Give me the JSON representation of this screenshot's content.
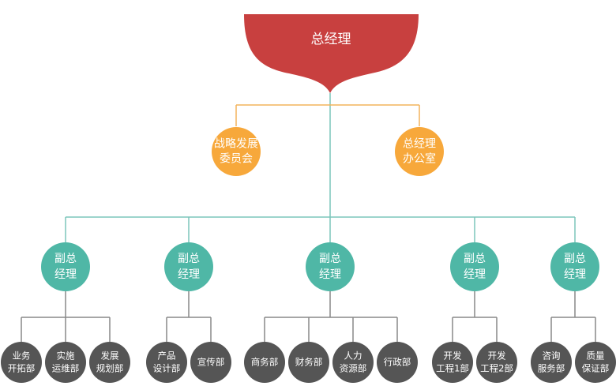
{
  "colors": {
    "top": "#c8403f",
    "staff": "#f7a83b",
    "vp": "#4fb7a6",
    "dept": "#555555",
    "line_orange": "#f2b35c",
    "line_teal": "#7cc5bb",
    "line_gray": "#888888"
  },
  "ceo": {
    "label": "总经理"
  },
  "staff_units": [
    {
      "lines": [
        "战略发展",
        "委员会"
      ]
    },
    {
      "lines": [
        "总经理",
        "办公室"
      ]
    }
  ],
  "vp_groups": [
    {
      "label_lines": [
        "副总",
        "经理"
      ],
      "departments": [
        {
          "lines": [
            "业务",
            "开拓部"
          ]
        },
        {
          "lines": [
            "实施",
            "运维部"
          ]
        },
        {
          "lines": [
            "发展",
            "规划部"
          ]
        }
      ]
    },
    {
      "label_lines": [
        "副总",
        "经理"
      ],
      "departments": [
        {
          "lines": [
            "产品",
            "设计部"
          ]
        },
        {
          "lines": [
            "宣传部"
          ]
        }
      ]
    },
    {
      "label_lines": [
        "副总",
        "经理"
      ],
      "departments": [
        {
          "lines": [
            "商务部"
          ]
        },
        {
          "lines": [
            "财务部"
          ]
        },
        {
          "lines": [
            "人力",
            "资源部"
          ]
        },
        {
          "lines": [
            "行政部"
          ]
        }
      ]
    },
    {
      "label_lines": [
        "副总",
        "经理"
      ],
      "departments": [
        {
          "lines": [
            "开发",
            "工程1部"
          ]
        },
        {
          "lines": [
            "开发",
            "工程2部"
          ]
        }
      ]
    },
    {
      "label_lines": [
        "副总",
        "经理"
      ],
      "departments": [
        {
          "lines": [
            "咨询",
            "服务部"
          ]
        },
        {
          "lines": [
            "质量",
            "保证部"
          ]
        }
      ]
    }
  ]
}
